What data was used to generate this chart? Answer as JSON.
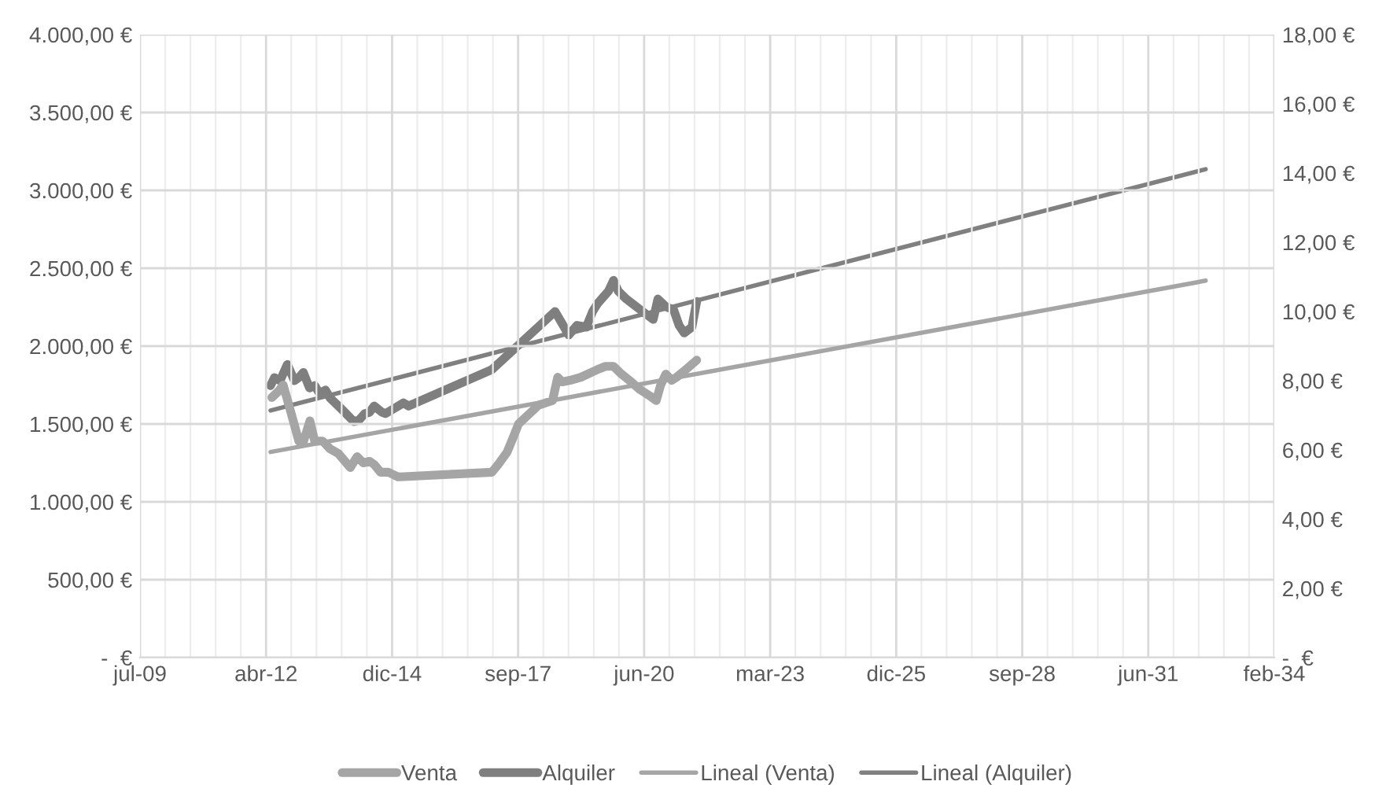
{
  "chart_data": {
    "type": "line",
    "xlim": [
      "2009-07-09",
      "2034-02-28"
    ],
    "xticks": [
      {
        "value": "2009-07-09",
        "label": "jul-09"
      },
      {
        "value": "2012-04-04",
        "label": "abr-12"
      },
      {
        "value": "2014-12-30",
        "label": "dic-14"
      },
      {
        "value": "2017-09-25",
        "label": "sep-17"
      },
      {
        "value": "2020-06-21",
        "label": "jun-20"
      },
      {
        "value": "2023-03-18",
        "label": "mar-23"
      },
      {
        "value": "2025-12-12",
        "label": "dic-25"
      },
      {
        "value": "2028-09-07",
        "label": "sep-28"
      },
      {
        "value": "2031-06-04",
        "label": "jun-31"
      },
      {
        "value": "2034-02-28",
        "label": "feb-34"
      }
    ],
    "ylim": [
      0,
      4000
    ],
    "yticks": [
      {
        "value": 0,
        "label": "-  €"
      },
      {
        "value": 500,
        "label": "500,00 €"
      },
      {
        "value": 1000,
        "label": "1.000,00 €"
      },
      {
        "value": 1500,
        "label": "1.500,00 €"
      },
      {
        "value": 2000,
        "label": "2.000,00 €"
      },
      {
        "value": 2500,
        "label": "2.500,00 €"
      },
      {
        "value": 3000,
        "label": "3.000,00 €"
      },
      {
        "value": 3500,
        "label": "3.500,00 €"
      },
      {
        "value": 4000,
        "label": "4.000,00 €"
      }
    ],
    "y2lim": [
      0,
      18
    ],
    "y2ticks": [
      {
        "value": 0,
        "label": "-  €"
      },
      {
        "value": 2,
        "label": "2,00 €"
      },
      {
        "value": 4,
        "label": "4,00 €"
      },
      {
        "value": 6,
        "label": "6,00 €"
      },
      {
        "value": 8,
        "label": "8,00 €"
      },
      {
        "value": 10,
        "label": "10,00 €"
      },
      {
        "value": 12,
        "label": "12,00 €"
      },
      {
        "value": 14,
        "label": "14,00 €"
      },
      {
        "value": 16,
        "label": "16,00 €"
      },
      {
        "value": 18,
        "label": "18,00 €"
      }
    ],
    "grid": true,
    "legend": "bottom",
    "marker": "none",
    "line_style": "solid",
    "series": [
      {
        "name": "Venta",
        "color": "#a5a5a5",
        "x": [
          "2012-05-20",
          "2012-07-12",
          "2012-08-18",
          "2012-10-20",
          "2012-12-20",
          "2013-01-27",
          "2013-03-18",
          "2013-04-25",
          "2013-06-27",
          "2013-08-25",
          "2013-10-30",
          "2014-02-01",
          "2014-03-28",
          "2014-05-15",
          "2014-07-05",
          "2014-08-10",
          "2014-09-30",
          "2014-12-01",
          "2015-02-15",
          "2017-03-01",
          "2017-04-20",
          "2017-06-30",
          "2017-08-20",
          "2017-09-28",
          "2018-03-05",
          "2018-06-25",
          "2018-08-05",
          "2018-09-10",
          "2018-11-10",
          "2019-02-05",
          "2019-06-18",
          "2019-08-20",
          "2019-10-22",
          "2019-12-25",
          "2020-02-25",
          "2020-05-20",
          "2020-08-05",
          "2020-09-25",
          "2020-10-30",
          "2020-12-10",
          "2021-01-25",
          "2021-03-05",
          "2021-05-05",
          "2021-08-12"
        ],
        "values": [
          1670,
          1710,
          1750,
          1570,
          1390,
          1390,
          1520,
          1390,
          1390,
          1340,
          1310,
          1220,
          1290,
          1250,
          1260,
          1240,
          1190,
          1190,
          1160,
          1190,
          1240,
          1320,
          1420,
          1500,
          1620,
          1650,
          1800,
          1770,
          1780,
          1800,
          1850,
          1870,
          1870,
          1820,
          1780,
          1720,
          1680,
          1650,
          1750,
          1820,
          1780,
          1800,
          1840,
          1910
        ]
      },
      {
        "name": "Alquiler",
        "color": "#7f7f7f",
        "axis": "y2",
        "x": [
          "2012-05-10",
          "2012-06-10",
          "2012-07-24",
          "2012-09-20",
          "2012-11-15",
          "2012-12-20",
          "2013-01-25",
          "2013-03-15",
          "2013-04-25",
          "2013-06-01",
          "2013-07-20",
          "2013-08-25",
          "2013-10-30",
          "2013-12-30",
          "2014-03-01",
          "2014-04-10",
          "2014-05-28",
          "2014-07-05",
          "2014-08-10",
          "2014-10-10",
          "2014-11-08",
          "2015-01-08",
          "2015-03-30",
          "2015-05-10",
          "2017-03-01",
          "2018-07-15",
          "2018-11-01",
          "2019-01-05",
          "2019-03-20",
          "2019-05-09",
          "2019-06-18",
          "2019-09-12",
          "2019-10-22",
          "2019-11-28",
          "2020-02-01",
          "2020-05-18",
          "2020-09-01",
          "2020-10-08",
          "2020-12-10",
          "2021-02-10",
          "2021-03-25",
          "2021-05-05",
          "2021-07-05",
          "2021-08-12"
        ],
        "values": [
          7.86,
          8.09,
          8.0,
          8.47,
          8.0,
          8.09,
          8.24,
          7.79,
          7.86,
          7.64,
          7.73,
          7.5,
          7.27,
          7.05,
          6.82,
          6.86,
          7.05,
          7.09,
          7.27,
          7.09,
          7.05,
          7.18,
          7.36,
          7.27,
          8.32,
          10.0,
          9.32,
          9.6,
          9.55,
          10.0,
          10.23,
          10.59,
          10.9,
          10.59,
          10.36,
          10.06,
          9.77,
          10.36,
          10.14,
          10.05,
          9.6,
          9.38,
          9.55,
          10.29
        ]
      },
      {
        "name": "Lineal (Venta)",
        "color": "#a5a5a5",
        "x": [
          "2012-05-10",
          "2032-09-01"
        ],
        "values": [
          1320,
          2420
        ]
      },
      {
        "name": "Lineal (Alquiler)",
        "color": "#808080",
        "axis": "y2",
        "x": [
          "2012-05-10",
          "2032-09-01"
        ],
        "values": [
          7.14,
          14.11
        ]
      }
    ]
  }
}
